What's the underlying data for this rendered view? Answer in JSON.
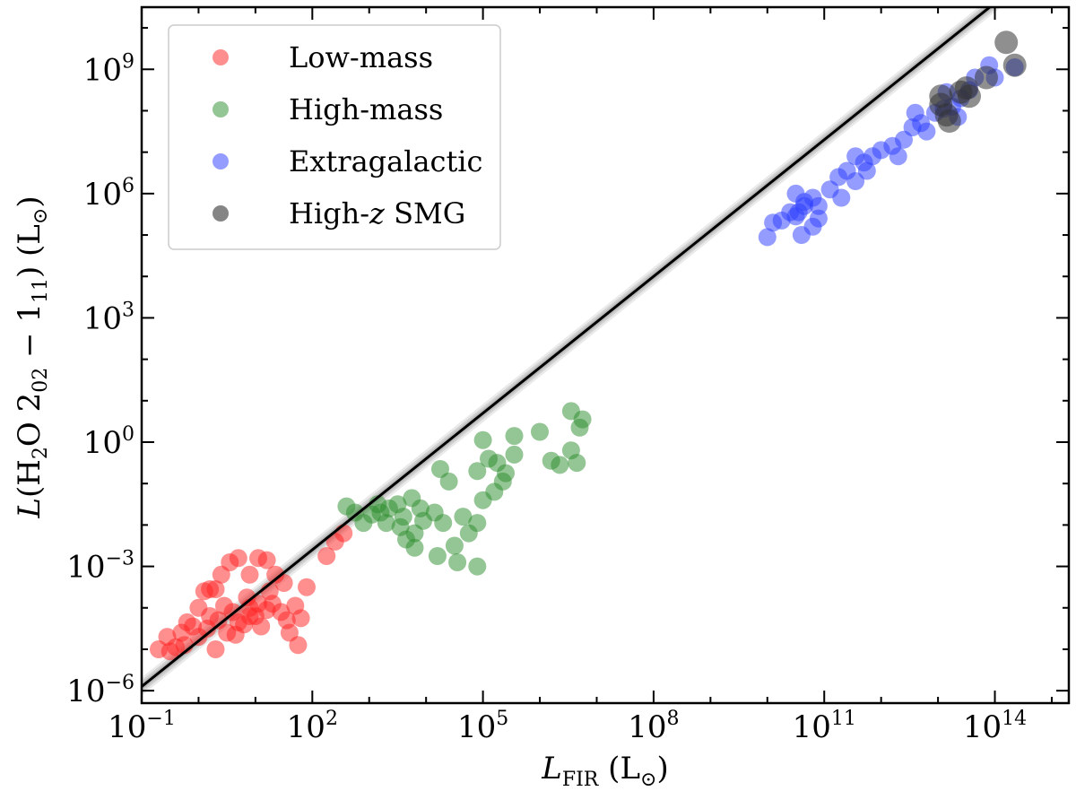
{
  "chart_data": {
    "type": "scatter",
    "x_scale": "log",
    "y_scale": "log",
    "xlabel": {
      "main": "L",
      "sub": "FIR",
      "tail": " (L",
      "sun": "⊙",
      "close": ")"
    },
    "ylabel": {
      "pre": "L",
      "mid": "(H",
      "sub2": "2",
      "o": "O 2",
      "sub02": "02",
      "minus": " − 1",
      "sub11": "11",
      "tail": ") (L",
      "sun": "⊙",
      "close": ")"
    },
    "xlim_exp": [
      -1,
      15.3
    ],
    "ylim_exp": [
      -6.3,
      10.5
    ],
    "x_ticks": [
      {
        "exp": -1,
        "base": "10",
        "sup": "−1"
      },
      {
        "exp": 2,
        "base": "10",
        "sup": "2"
      },
      {
        "exp": 5,
        "base": "10",
        "sup": "5"
      },
      {
        "exp": 8,
        "base": "10",
        "sup": "8"
      },
      {
        "exp": 11,
        "base": "10",
        "sup": "11"
      },
      {
        "exp": 14,
        "base": "10",
        "sup": "14"
      }
    ],
    "y_ticks": [
      {
        "exp": -6,
        "base": "10",
        "sup": "−6"
      },
      {
        "exp": -3,
        "base": "10",
        "sup": "−3"
      },
      {
        "exp": 0,
        "base": "10",
        "sup": "0"
      },
      {
        "exp": 3,
        "base": "10",
        "sup": "3"
      },
      {
        "exp": 6,
        "base": "10",
        "sup": "6"
      },
      {
        "exp": 9,
        "base": "10",
        "sup": "9"
      }
    ],
    "fit_line": {
      "slope": 1.1,
      "intercept": -4.8
    },
    "legend_position": "top-left",
    "series": [
      {
        "name": "Low-mass",
        "color": "#ff2020",
        "points_log": [
          [
            -0.7,
            -5.0
          ],
          [
            -0.5,
            -5.05
          ],
          [
            -0.55,
            -4.7
          ],
          [
            -0.3,
            -4.6
          ],
          [
            -0.25,
            -4.9
          ],
          [
            -0.1,
            -4.45
          ],
          [
            0.0,
            -4.7
          ],
          [
            -0.2,
            -4.35
          ],
          [
            0.15,
            -4.5
          ],
          [
            0.3,
            -5.0
          ],
          [
            0.2,
            -4.2
          ],
          [
            0.35,
            -4.3
          ],
          [
            0.5,
            -4.6
          ],
          [
            0.6,
            -4.1
          ],
          [
            0.7,
            -4.35
          ],
          [
            0.8,
            -4.4
          ],
          [
            0.9,
            -4.0
          ],
          [
            1.0,
            -4.2
          ],
          [
            1.1,
            -4.45
          ],
          [
            1.2,
            -4.05
          ],
          [
            1.3,
            -3.9
          ],
          [
            1.45,
            -4.1
          ],
          [
            1.55,
            -4.3
          ],
          [
            1.6,
            -4.6
          ],
          [
            1.7,
            -3.95
          ],
          [
            1.8,
            -4.25
          ],
          [
            1.9,
            -3.5
          ],
          [
            0.0,
            -4.0
          ],
          [
            0.1,
            -3.6
          ],
          [
            0.3,
            -3.55
          ],
          [
            0.4,
            -3.2
          ],
          [
            0.55,
            -2.9
          ],
          [
            0.7,
            -2.8
          ],
          [
            0.9,
            -3.2
          ],
          [
            1.05,
            -2.8
          ],
          [
            1.2,
            -2.85
          ],
          [
            1.35,
            -3.2
          ],
          [
            1.5,
            -3.4
          ],
          [
            0.85,
            -3.75
          ],
          [
            1.25,
            -3.6
          ],
          [
            0.45,
            -3.95
          ],
          [
            1.05,
            -3.9
          ],
          [
            2.25,
            -2.75
          ],
          [
            2.4,
            -2.4
          ],
          [
            2.55,
            -2.2
          ],
          [
            0.9,
            -4.2
          ],
          [
            0.2,
            -3.55
          ],
          [
            0.65,
            -4.65
          ],
          [
            -0.4,
            -4.95
          ],
          [
            1.75,
            -4.9
          ]
        ]
      },
      {
        "name": "High-mass",
        "color": "#2a8c2a",
        "points_log": [
          [
            2.6,
            -1.55
          ],
          [
            2.75,
            -1.7
          ],
          [
            2.9,
            -1.95
          ],
          [
            3.05,
            -1.75
          ],
          [
            3.2,
            -1.7
          ],
          [
            3.35,
            -1.6
          ],
          [
            3.5,
            -1.5
          ],
          [
            3.6,
            -1.8
          ],
          [
            3.75,
            -1.35
          ],
          [
            3.9,
            -1.6
          ],
          [
            3.15,
            -1.5
          ],
          [
            3.3,
            -1.95
          ],
          [
            3.55,
            -2.05
          ],
          [
            3.65,
            -2.35
          ],
          [
            3.8,
            -2.2
          ],
          [
            3.95,
            -1.9
          ],
          [
            4.15,
            -1.7
          ],
          [
            4.3,
            -1.95
          ],
          [
            4.5,
            -2.5
          ],
          [
            4.75,
            -2.2
          ],
          [
            4.9,
            -1.95
          ],
          [
            4.65,
            -1.8
          ],
          [
            5.0,
            -1.4
          ],
          [
            4.4,
            -0.95
          ],
          [
            4.25,
            -0.65
          ],
          [
            5.2,
            -1.2
          ],
          [
            5.35,
            -0.95
          ],
          [
            4.9,
            -0.7
          ],
          [
            5.1,
            -0.4
          ],
          [
            5.25,
            -0.5
          ],
          [
            5.4,
            -0.75
          ],
          [
            5.55,
            -0.3
          ],
          [
            5.0,
            0.05
          ],
          [
            5.55,
            0.15
          ],
          [
            6.0,
            0.25
          ],
          [
            6.2,
            -0.45
          ],
          [
            6.35,
            -0.55
          ],
          [
            6.55,
            -0.2
          ],
          [
            6.7,
            0.35
          ],
          [
            6.75,
            0.55
          ],
          [
            6.65,
            -0.5
          ],
          [
            6.55,
            0.75
          ],
          [
            4.2,
            -2.75
          ],
          [
            4.55,
            -2.9
          ],
          [
            4.9,
            -3.0
          ],
          [
            3.8,
            -2.55
          ]
        ]
      },
      {
        "name": "Extragalactic",
        "color": "#2a3cff",
        "points_log": [
          [
            10.0,
            4.95
          ],
          [
            10.1,
            5.3
          ],
          [
            10.25,
            5.35
          ],
          [
            10.4,
            5.55
          ],
          [
            10.5,
            5.45
          ],
          [
            10.65,
            5.7
          ],
          [
            10.8,
            5.9
          ],
          [
            10.9,
            5.7
          ],
          [
            11.1,
            6.1
          ],
          [
            11.25,
            6.4
          ],
          [
            11.4,
            6.55
          ],
          [
            11.55,
            6.3
          ],
          [
            11.7,
            6.75
          ],
          [
            11.85,
            6.9
          ],
          [
            12.0,
            7.05
          ],
          [
            12.2,
            7.15
          ],
          [
            12.4,
            7.3
          ],
          [
            12.55,
            7.6
          ],
          [
            12.7,
            7.7
          ],
          [
            12.8,
            7.5
          ],
          [
            12.95,
            7.95
          ],
          [
            13.1,
            8.05
          ],
          [
            13.25,
            8.1
          ],
          [
            13.4,
            8.3
          ],
          [
            13.55,
            8.5
          ],
          [
            13.65,
            8.8
          ],
          [
            13.9,
            9.1
          ],
          [
            14.0,
            8.8
          ],
          [
            14.35,
            9.05
          ],
          [
            11.3,
            5.9
          ],
          [
            11.55,
            6.9
          ],
          [
            11.75,
            6.55
          ],
          [
            10.65,
            5.8
          ],
          [
            10.55,
            5.55
          ],
          [
            13.15,
            8.45
          ],
          [
            13.35,
            7.85
          ],
          [
            10.5,
            6.0
          ],
          [
            10.8,
            5.2
          ],
          [
            12.3,
            6.9
          ],
          [
            12.6,
            7.95
          ],
          [
            10.9,
            5.4
          ],
          [
            10.6,
            5.0
          ]
        ]
      },
      {
        "name": "High-z SMG",
        "color": "#333333",
        "points_log": [
          [
            13.05,
            8.15
          ],
          [
            13.15,
            7.9
          ],
          [
            13.2,
            7.75
          ],
          [
            13.4,
            8.45
          ],
          [
            13.5,
            8.55
          ],
          [
            13.55,
            8.35
          ],
          [
            13.85,
            8.8
          ],
          [
            14.35,
            9.1
          ],
          [
            14.2,
            9.65
          ],
          [
            13.05,
            8.35
          ]
        ]
      }
    ]
  }
}
